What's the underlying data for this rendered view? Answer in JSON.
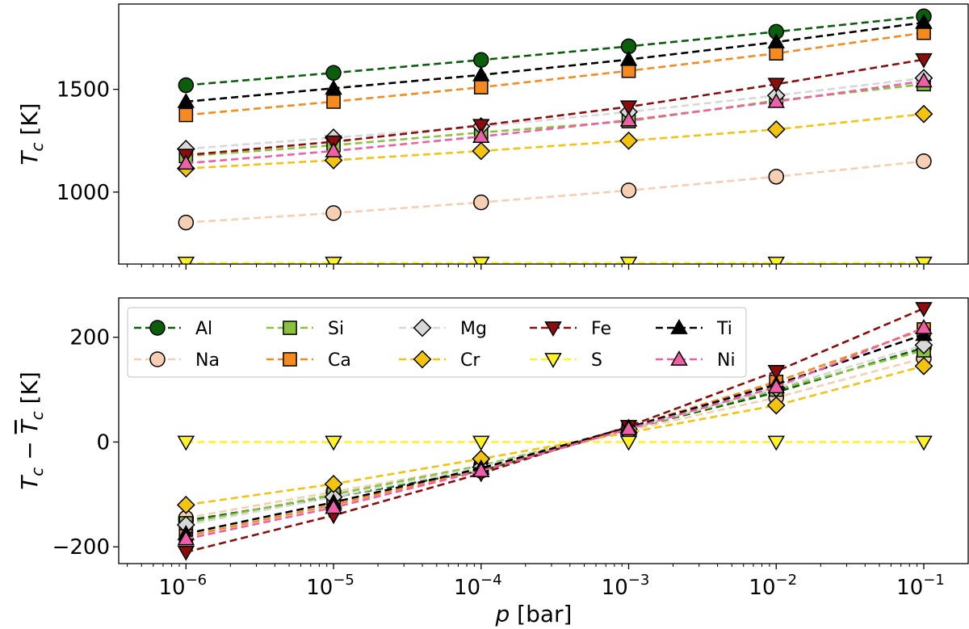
{
  "chart_data": [
    {
      "type": "line",
      "panel": "top",
      "x": [
        1e-06,
        1e-05,
        0.0001,
        0.001,
        0.01,
        0.1
      ],
      "xscale": "log",
      "xlim": [
        3.5e-07,
        0.2
      ],
      "ylim": [
        650,
        1915
      ],
      "yticks": [
        1000,
        1500
      ],
      "ylabel": "T_c [K]",
      "xlabel": "",
      "series": [
        {
          "name": "Al",
          "color": "#0b5e0b",
          "marker": "circle",
          "values": [
            1520,
            1580,
            1643,
            1709,
            1780,
            1855
          ]
        },
        {
          "name": "Na",
          "color": "#f6cfb2",
          "marker": "circle",
          "values": [
            852,
            898,
            950,
            1008,
            1075,
            1150
          ]
        },
        {
          "name": "Si",
          "color": "#8ac23d",
          "marker": "square",
          "values": [
            1175,
            1228,
            1290,
            1345,
            1445,
            1525
          ]
        },
        {
          "name": "Ca",
          "color": "#f58a1e",
          "marker": "square",
          "values": [
            1375,
            1440,
            1510,
            1590,
            1675,
            1775
          ]
        },
        {
          "name": "Mg",
          "color": "#d8d8d8",
          "marker": "diamond",
          "values": [
            1210,
            1265,
            1320,
            1390,
            1470,
            1555
          ]
        },
        {
          "name": "Cr",
          "color": "#f2c40f",
          "marker": "diamond",
          "values": [
            1115,
            1155,
            1200,
            1250,
            1305,
            1380
          ]
        },
        {
          "name": "Fe",
          "color": "#8b0d0d",
          "marker": "triangle-down",
          "values": [
            1180,
            1245,
            1325,
            1415,
            1525,
            1645
          ]
        },
        {
          "name": "S",
          "color": "#fff227",
          "marker": "triangle-down",
          "values": [
            655,
            655,
            655,
            655,
            655,
            655
          ]
        },
        {
          "name": "Ti",
          "color": "#000000",
          "marker": "triangle-up",
          "values": [
            1440,
            1505,
            1570,
            1645,
            1730,
            1825
          ]
        },
        {
          "name": "Ni",
          "color": "#ee5fa7",
          "marker": "triangle-up",
          "values": [
            1140,
            1200,
            1270,
            1350,
            1440,
            1540
          ]
        }
      ]
    },
    {
      "type": "line",
      "panel": "bottom",
      "x": [
        1e-06,
        1e-05,
        0.0001,
        0.001,
        0.01,
        0.1
      ],
      "xscale": "log",
      "xlim": [
        3.5e-07,
        0.2
      ],
      "ylim": [
        -232,
        275
      ],
      "yticks": [
        -200,
        0,
        200
      ],
      "ytick_labels": [
        "−200",
        "0",
        "200"
      ],
      "xtick_labels": [
        "10",
        "10",
        "10",
        "10",
        "10",
        "10"
      ],
      "xtick_exponents": [
        "−6",
        "−5",
        "−4",
        "−3",
        "−2",
        "−1"
      ],
      "ylabel": "T_c − T̄_c [K]",
      "xlabel": "p [bar]",
      "legend": {
        "placement": "top-left",
        "columns": 5
      },
      "series": [
        {
          "name": "Al",
          "color": "#0b5e0b",
          "marker": "circle",
          "values": [
            -150,
            -105,
            -55,
            25,
            95,
            180
          ]
        },
        {
          "name": "Na",
          "color": "#f6cfb2",
          "marker": "circle",
          "values": [
            -145,
            -95,
            -45,
            22,
            85,
            160
          ]
        },
        {
          "name": "Si",
          "color": "#8ac23d",
          "marker": "square",
          "values": [
            -155,
            -100,
            -45,
            25,
            100,
            175
          ]
        },
        {
          "name": "Ca",
          "color": "#f58a1e",
          "marker": "square",
          "values": [
            -180,
            -120,
            -52,
            28,
            115,
            215
          ]
        },
        {
          "name": "Mg",
          "color": "#d8d8d8",
          "marker": "diamond",
          "values": [
            -158,
            -105,
            -48,
            25,
            103,
            185
          ]
        },
        {
          "name": "Cr",
          "color": "#f2c40f",
          "marker": "diamond",
          "values": [
            -120,
            -80,
            -32,
            18,
            70,
            145
          ]
        },
        {
          "name": "Fe",
          "color": "#8b0d0d",
          "marker": "triangle-down",
          "values": [
            -210,
            -140,
            -60,
            30,
            135,
            255
          ]
        },
        {
          "name": "S",
          "color": "#fff227",
          "marker": "triangle-down",
          "values": [
            0,
            0,
            0,
            0,
            0,
            0
          ]
        },
        {
          "name": "Ti",
          "color": "#000000",
          "marker": "triangle-up",
          "values": [
            -175,
            -115,
            -50,
            28,
            110,
            205
          ]
        },
        {
          "name": "Ni",
          "color": "#ee5fa7",
          "marker": "triangle-up",
          "values": [
            -185,
            -125,
            -55,
            25,
            105,
            218
          ]
        }
      ]
    }
  ]
}
